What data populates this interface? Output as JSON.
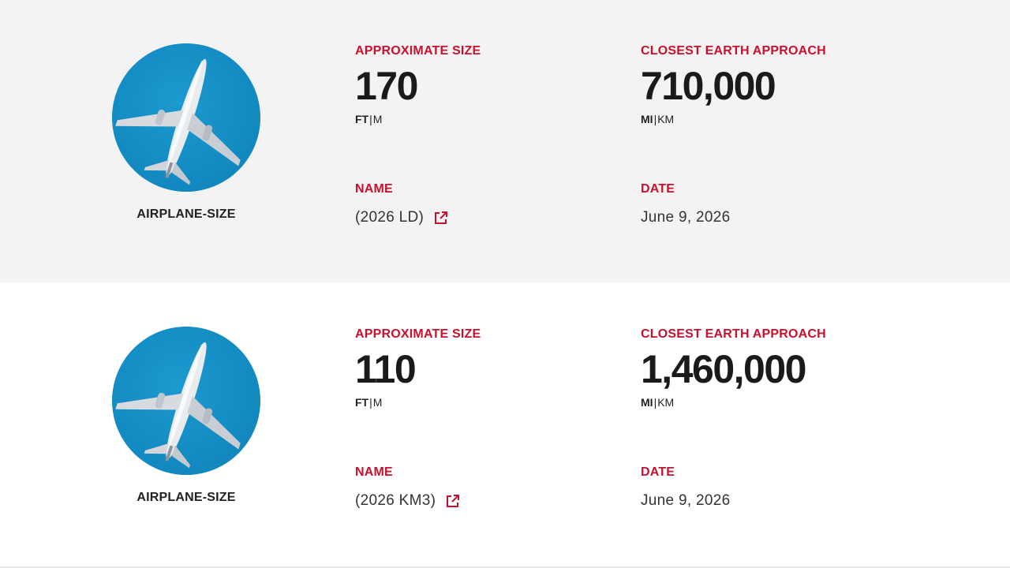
{
  "asteroids": [
    {
      "size_category": "AIRPLANE-SIZE",
      "size_label": "APPROXIMATE SIZE",
      "size_value": "170",
      "size_unit_primary": "FT",
      "size_unit_secondary": "M",
      "approach_label": "CLOSEST EARTH APPROACH",
      "approach_value": "710,000",
      "approach_unit_primary": "MI",
      "approach_unit_secondary": "KM",
      "name_label": "NAME",
      "name_value": "(2026 LD)",
      "date_label": "DATE",
      "date_value": "June 9, 2026"
    },
    {
      "size_category": "AIRPLANE-SIZE",
      "size_label": "APPROXIMATE SIZE",
      "size_value": "110",
      "size_unit_primary": "FT",
      "size_unit_secondary": "M",
      "approach_label": "CLOSEST EARTH APPROACH",
      "approach_value": "1,460,000",
      "approach_unit_primary": "MI",
      "approach_unit_secondary": "KM",
      "name_label": "NAME",
      "name_value": "(2026 KM3)",
      "date_label": "DATE",
      "date_value": "June 9, 2026"
    }
  ],
  "unit_separator": "|",
  "icons": {
    "thumbnail": "airplane-icon",
    "name_link": "external-link-icon"
  },
  "colors": {
    "accent": "#c8102e",
    "row_alt_bg": "#f3f3f3",
    "thumb_bg": "#138bc2",
    "text": "#1a1a1a"
  }
}
